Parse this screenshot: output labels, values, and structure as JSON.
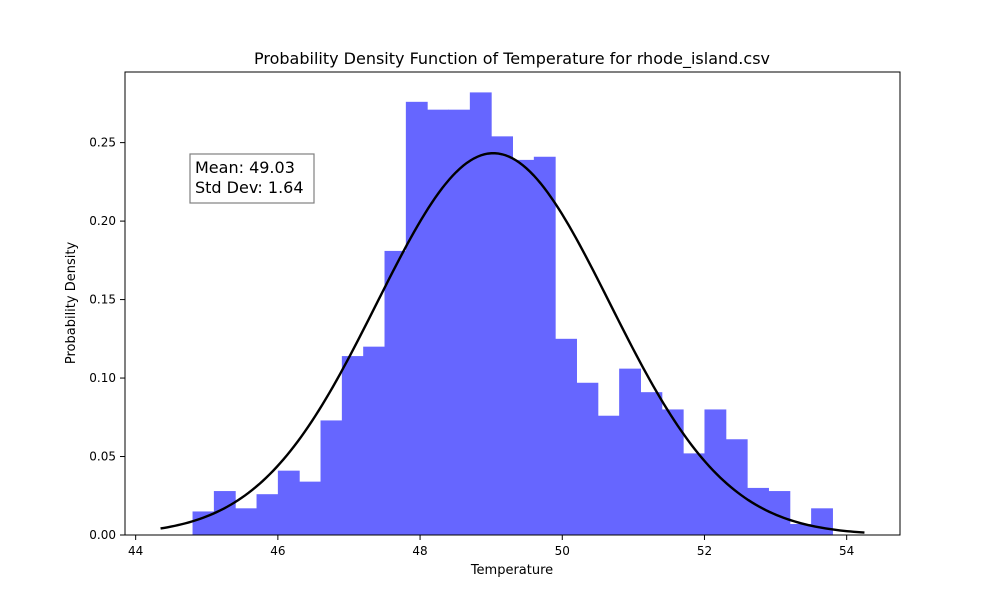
{
  "chart_data": {
    "type": "histogram",
    "title": "Probability Density Function of Temperature for rhode_island.csv",
    "xlabel": "Temperature",
    "ylabel": "Probability Density",
    "xlim": [
      43.85,
      54.75
    ],
    "ylim": [
      0,
      0.295
    ],
    "xticks": [
      44,
      46,
      48,
      50,
      52,
      54
    ],
    "yticks": [
      0.0,
      0.05,
      0.1,
      0.15,
      0.2,
      0.25
    ],
    "grid": false,
    "bar_color": "#6666ff",
    "curve_color": "#000000",
    "bins": {
      "start": 44.8,
      "width": 0.3,
      "values": [
        0.015,
        0.028,
        0.017,
        0.026,
        0.041,
        0.034,
        0.073,
        0.114,
        0.12,
        0.181,
        0.276,
        0.271,
        0.271,
        0.282,
        0.254,
        0.239,
        0.241,
        0.125,
        0.097,
        0.076,
        0.106,
        0.091,
        0.08,
        0.052,
        0.08,
        0.061,
        0.03,
        0.028,
        0.007,
        0.017
      ]
    },
    "pdf_curve": {
      "mean": 49.03,
      "std": 1.64,
      "x_range": [
        44.35,
        54.25
      ]
    },
    "annotation": {
      "lines": [
        "Mean: 49.03",
        "Std Dev: 1.64"
      ]
    }
  }
}
